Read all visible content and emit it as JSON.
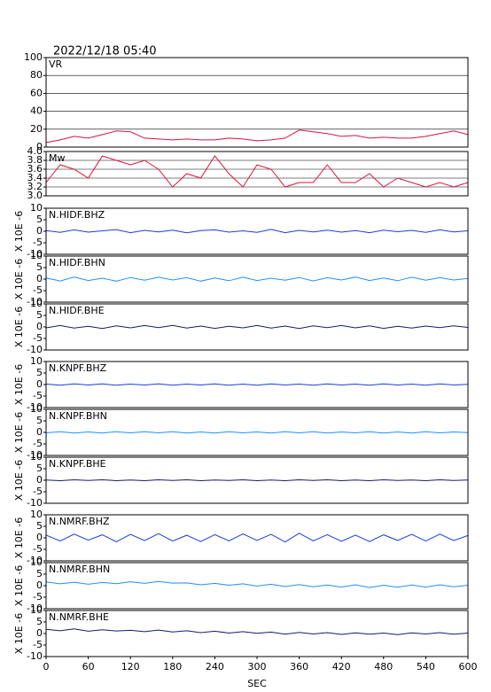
{
  "chart_data": [
    {
      "type": "line",
      "title": "2022/12/18 05:40",
      "panel_label": "VR",
      "color": "#dc143c",
      "grid": true,
      "xlim": [
        0,
        600
      ],
      "ylim": [
        0,
        100
      ],
      "yticks": [
        0,
        20,
        40,
        60,
        80,
        100
      ],
      "x": [
        0,
        20,
        40,
        60,
        80,
        100,
        120,
        140,
        160,
        180,
        200,
        220,
        240,
        260,
        280,
        300,
        320,
        340,
        360,
        380,
        400,
        420,
        440,
        460,
        480,
        500,
        520,
        540,
        560,
        580,
        600
      ],
      "values": [
        5,
        8,
        12,
        10,
        14,
        18,
        17,
        10,
        9,
        8,
        9,
        8,
        8,
        10,
        9,
        7,
        8,
        10,
        19,
        17,
        15,
        12,
        13,
        10,
        11,
        10,
        10,
        12,
        15,
        18,
        14
      ]
    },
    {
      "type": "line",
      "panel_label": "Mw",
      "color": "#dc143c",
      "grid": true,
      "xlim": [
        0,
        600
      ],
      "ylim": [
        3.0,
        4.0
      ],
      "yticks": [
        {
          "value": 3.0,
          "label": "3.0"
        },
        3.2,
        3.4,
        3.6,
        3.8,
        {
          "value": 4.0,
          "label": "4.0"
        }
      ],
      "x": [
        0,
        20,
        40,
        60,
        80,
        100,
        120,
        140,
        160,
        180,
        200,
        220,
        240,
        260,
        280,
        300,
        320,
        340,
        360,
        380,
        400,
        420,
        440,
        460,
        480,
        500,
        520,
        540,
        560,
        580,
        600
      ],
      "values": [
        3.3,
        3.7,
        3.6,
        3.4,
        3.9,
        3.8,
        3.7,
        3.8,
        3.6,
        3.2,
        3.5,
        3.4,
        3.9,
        3.5,
        3.2,
        3.7,
        3.6,
        3.2,
        3.3,
        3.3,
        3.7,
        3.3,
        3.3,
        3.5,
        3.2,
        3.4,
        3.3,
        3.2,
        3.3,
        3.2,
        3.3
      ]
    },
    {
      "type": "line",
      "panel_label": "N.HIDF.BHZ",
      "ylabel": "X 10E -6",
      "color": "#1a3cdc",
      "grid": false,
      "xlim": [
        0,
        600
      ],
      "ylim": [
        -10,
        10
      ],
      "yticks": [
        -10,
        -5,
        0,
        5,
        10
      ],
      "x": [
        0,
        20,
        40,
        60,
        80,
        100,
        120,
        140,
        160,
        180,
        200,
        220,
        240,
        260,
        280,
        300,
        320,
        340,
        360,
        380,
        400,
        420,
        440,
        460,
        480,
        500,
        520,
        540,
        560,
        580,
        600
      ],
      "values": [
        0.3,
        -0.5,
        0.6,
        -0.4,
        0.2,
        0.7,
        -0.6,
        0.4,
        -0.3,
        0.5,
        -0.7,
        0.3,
        0.6,
        -0.4,
        0.2,
        -0.5,
        0.8,
        -0.6,
        0.4,
        -0.3,
        0.5,
        -0.4,
        0.3,
        -0.6,
        0.5,
        -0.2,
        0.4,
        -0.5,
        0.6,
        -0.3,
        0.2
      ]
    },
    {
      "type": "line",
      "panel_label": "N.HIDF.BHN",
      "ylabel": "X 10E -6",
      "color": "#1e90ff",
      "grid": false,
      "xlim": [
        0,
        600
      ],
      "ylim": [
        -10,
        10
      ],
      "yticks": [
        -10,
        -5,
        0,
        5,
        10
      ],
      "x": [
        0,
        20,
        40,
        60,
        80,
        100,
        120,
        140,
        160,
        180,
        200,
        220,
        240,
        260,
        280,
        300,
        320,
        340,
        360,
        380,
        400,
        420,
        440,
        460,
        480,
        500,
        520,
        540,
        560,
        580,
        600
      ],
      "values": [
        0.5,
        -0.8,
        0.9,
        -0.6,
        0.4,
        -0.9,
        0.7,
        -0.5,
        0.8,
        -0.4,
        0.6,
        -0.9,
        0.5,
        -0.7,
        0.8,
        -0.6,
        0.4,
        -0.5,
        0.7,
        -0.8,
        0.6,
        -0.4,
        0.9,
        -0.6,
        0.5,
        -0.7,
        0.8,
        -0.5,
        0.6,
        -0.4,
        0.3
      ]
    },
    {
      "type": "line",
      "panel_label": "N.HIDF.BHE",
      "ylabel": "X 10E -6",
      "color": "#191970",
      "grid": false,
      "xlim": [
        0,
        600
      ],
      "ylim": [
        -10,
        10
      ],
      "yticks": [
        -10,
        -5,
        0,
        5,
        10
      ],
      "x": [
        0,
        20,
        40,
        60,
        80,
        100,
        120,
        140,
        160,
        180,
        200,
        220,
        240,
        260,
        280,
        300,
        320,
        340,
        360,
        380,
        400,
        420,
        440,
        460,
        480,
        500,
        520,
        540,
        560,
        580,
        600
      ],
      "values": [
        -0.4,
        0.6,
        -0.5,
        0.3,
        -0.7,
        0.5,
        -0.4,
        0.6,
        -0.3,
        0.7,
        -0.5,
        0.4,
        -0.6,
        0.3,
        -0.4,
        0.6,
        -0.5,
        0.4,
        -0.7,
        0.5,
        -0.3,
        0.6,
        -0.4,
        0.5,
        -0.6,
        0.3,
        -0.5,
        0.4,
        -0.3,
        0.5,
        -0.2
      ]
    },
    {
      "type": "line",
      "panel_label": "N.KNPF.BHZ",
      "ylabel": "X 10E -6",
      "color": "#1a3cdc",
      "grid": false,
      "xlim": [
        0,
        600
      ],
      "ylim": [
        -10,
        10
      ],
      "yticks": [
        -10,
        -5,
        0,
        5,
        10
      ],
      "x": [
        0,
        20,
        40,
        60,
        80,
        100,
        120,
        140,
        160,
        180,
        200,
        220,
        240,
        260,
        280,
        300,
        320,
        340,
        360,
        380,
        400,
        420,
        440,
        460,
        480,
        500,
        520,
        540,
        560,
        580,
        600
      ],
      "values": [
        0.2,
        -0.3,
        0.3,
        -0.2,
        0.3,
        -0.3,
        0.2,
        -0.2,
        0.3,
        -0.3,
        0.2,
        -0.2,
        0.3,
        -0.3,
        0.2,
        -0.3,
        0.3,
        -0.2,
        0.2,
        -0.3,
        0.3,
        -0.2,
        0.2,
        -0.3,
        0.3,
        -0.2,
        0.2,
        -0.3,
        0.3,
        -0.2,
        0.1
      ]
    },
    {
      "type": "line",
      "panel_label": "N.KNPF.BHN",
      "ylabel": "X 10E -6",
      "color": "#1e90ff",
      "grid": false,
      "xlim": [
        0,
        600
      ],
      "ylim": [
        -10,
        10
      ],
      "yticks": [
        -10,
        -5,
        0,
        5,
        10
      ],
      "x": [
        0,
        20,
        40,
        60,
        80,
        100,
        120,
        140,
        160,
        180,
        200,
        220,
        240,
        260,
        280,
        300,
        320,
        340,
        360,
        380,
        400,
        420,
        440,
        460,
        480,
        500,
        520,
        540,
        560,
        580,
        600
      ],
      "values": [
        -0.2,
        0.3,
        -0.3,
        0.2,
        -0.3,
        0.3,
        -0.2,
        0.3,
        -0.2,
        0.3,
        -0.3,
        0.2,
        -0.3,
        0.3,
        -0.2,
        0.2,
        -0.3,
        0.3,
        -0.2,
        0.3,
        -0.3,
        0.2,
        -0.2,
        0.3,
        -0.3,
        0.2,
        -0.3,
        0.3,
        -0.2,
        0.2,
        -0.1
      ]
    },
    {
      "type": "line",
      "panel_label": "N.KNPF.BHE",
      "ylabel": "X 10E -6",
      "color": "#191970",
      "grid": false,
      "xlim": [
        0,
        600
      ],
      "ylim": [
        -10,
        10
      ],
      "yticks": [
        -10,
        -5,
        0,
        5,
        10
      ],
      "x": [
        0,
        20,
        40,
        60,
        80,
        100,
        120,
        140,
        160,
        180,
        200,
        220,
        240,
        260,
        280,
        300,
        320,
        340,
        360,
        380,
        400,
        420,
        440,
        460,
        480,
        500,
        520,
        540,
        560,
        580,
        600
      ],
      "values": [
        0.1,
        -0.2,
        0.2,
        -0.1,
        0.2,
        -0.2,
        0.1,
        -0.2,
        0.2,
        -0.1,
        0.2,
        -0.2,
        0.1,
        -0.1,
        0.2,
        -0.2,
        0.1,
        -0.2,
        0.2,
        -0.1,
        0.2,
        -0.2,
        0.1,
        -0.2,
        0.2,
        -0.1,
        0.1,
        -0.2,
        0.2,
        -0.1,
        0.1
      ]
    },
    {
      "type": "line",
      "panel_label": "N.NMRF.BHZ",
      "ylabel": "X 10E -6",
      "color": "#1a3cdc",
      "grid": false,
      "xlim": [
        0,
        600
      ],
      "ylim": [
        -10,
        10
      ],
      "yticks": [
        -10,
        -5,
        0,
        5,
        10
      ],
      "x": [
        0,
        20,
        40,
        60,
        80,
        100,
        120,
        140,
        160,
        180,
        200,
        220,
        240,
        260,
        280,
        300,
        320,
        340,
        360,
        380,
        400,
        420,
        440,
        460,
        480,
        500,
        520,
        540,
        560,
        580,
        600
      ],
      "values": [
        1.2,
        -1.4,
        1.6,
        -1.0,
        1.3,
        -1.7,
        1.5,
        -1.2,
        1.8,
        -1.4,
        1.1,
        -1.6,
        1.4,
        -1.3,
        1.7,
        -1.1,
        1.5,
        -1.8,
        2.0,
        -1.3,
        1.4,
        -1.5,
        1.2,
        -1.6,
        1.3,
        -1.1,
        1.5,
        -1.4,
        1.6,
        -1.2,
        1.0
      ]
    },
    {
      "type": "line",
      "panel_label": "N.NMRF.BHN",
      "ylabel": "X 10E -6",
      "color": "#1e90ff",
      "grid": false,
      "xlim": [
        0,
        600
      ],
      "ylim": [
        -10,
        10
      ],
      "yticks": [
        -10,
        -5,
        0,
        5,
        10
      ],
      "x": [
        0,
        20,
        40,
        60,
        80,
        100,
        120,
        140,
        160,
        180,
        200,
        220,
        240,
        260,
        280,
        300,
        320,
        340,
        360,
        380,
        400,
        420,
        440,
        460,
        480,
        500,
        520,
        540,
        560,
        580,
        600
      ],
      "values": [
        1.6,
        0.8,
        1.5,
        0.6,
        1.4,
        0.9,
        1.7,
        1.0,
        1.8,
        1.1,
        1.2,
        0.4,
        1.0,
        0.2,
        0.8,
        -0.2,
        0.6,
        -0.4,
        0.5,
        -0.5,
        0.3,
        -0.6,
        0.4,
        -0.8,
        0.2,
        -0.7,
        0.3,
        -0.6,
        0.4,
        -0.5,
        0.2
      ]
    },
    {
      "type": "line",
      "panel_label": "N.NMRF.BHE",
      "ylabel": "X 10E -6",
      "color": "#191970",
      "grid": false,
      "xlim": [
        0,
        600
      ],
      "ylim": [
        -10,
        10
      ],
      "yticks": [
        -10,
        -5,
        0,
        5,
        10
      ],
      "xlabel": "SEC",
      "xticks": [
        0,
        60,
        120,
        180,
        240,
        300,
        360,
        420,
        480,
        540,
        600
      ],
      "x": [
        0,
        20,
        40,
        60,
        80,
        100,
        120,
        140,
        160,
        180,
        200,
        220,
        240,
        260,
        280,
        300,
        320,
        340,
        360,
        380,
        400,
        420,
        440,
        460,
        480,
        500,
        520,
        540,
        560,
        580,
        600
      ],
      "values": [
        1.8,
        1.2,
        2.0,
        1.0,
        1.6,
        1.1,
        1.4,
        0.8,
        1.5,
        0.7,
        1.2,
        0.4,
        1.0,
        0.2,
        0.8,
        0.1,
        0.6,
        -0.3,
        0.5,
        -0.2,
        0.4,
        -0.4,
        0.3,
        -0.3,
        0.2,
        -0.5,
        0.3,
        -0.2,
        0.4,
        -0.3,
        0.2
      ]
    }
  ]
}
